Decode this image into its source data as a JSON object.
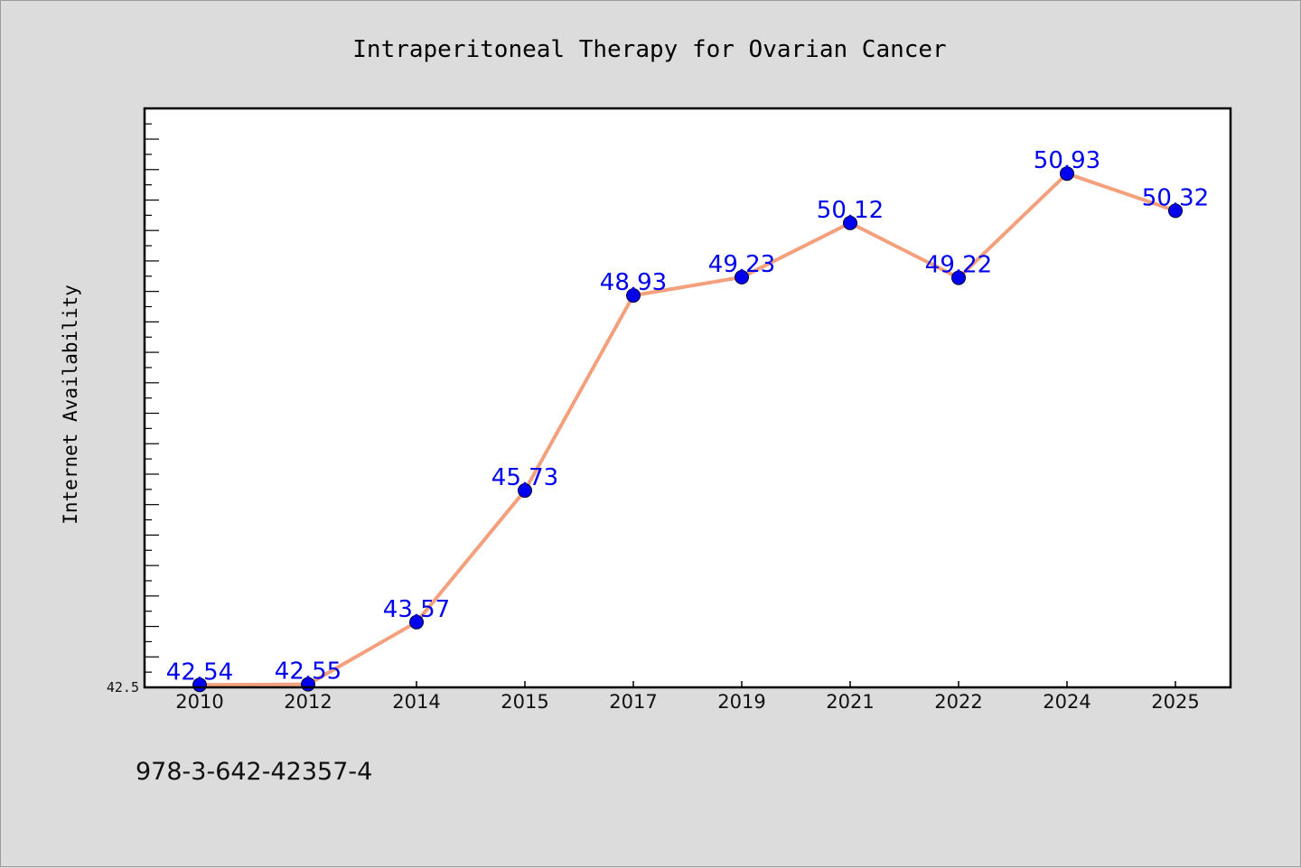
{
  "chart_data": {
    "type": "line",
    "title": "Intraperitoneal Therapy for Ovarian Cancer",
    "xlabel": "",
    "ylabel": "Internet Availability",
    "categories": [
      "2010",
      "2012",
      "2014",
      "2015",
      "2017",
      "2019",
      "2021",
      "2022",
      "2024",
      "2025"
    ],
    "series": [
      {
        "values": [
          42.54,
          42.55,
          43.57,
          45.73,
          48.93,
          49.23,
          50.12,
          49.22,
          50.93,
          50.32
        ],
        "data_labels": [
          "42.54",
          "42.55",
          "43.57",
          "45.73",
          "48.93",
          "49.23",
          "50.12",
          "49.22",
          "50.93",
          "50.32"
        ],
        "line_color": "#f4a07c",
        "marker_color": "#0000ee"
      }
    ],
    "y_tick_labels": [
      "42.5"
    ],
    "ylim": [
      42.5,
      52.0
    ],
    "grid": false,
    "legend": "none",
    "note": "978-3-642-42357-4"
  }
}
